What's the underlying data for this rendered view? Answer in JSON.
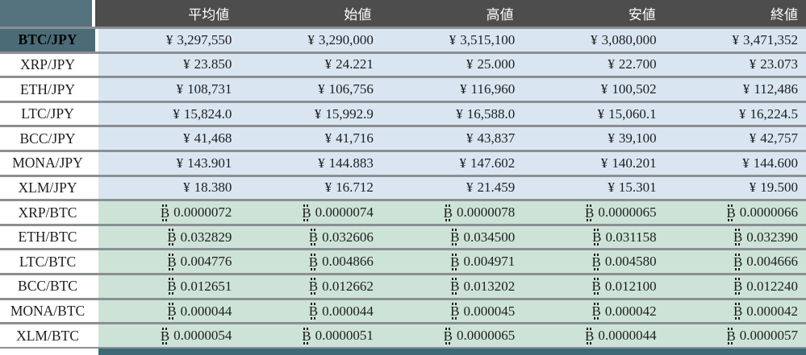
{
  "colors": {
    "header_bg": "#4d4d4d",
    "header_text": "#ffffff",
    "corner_bg": "#54737f",
    "highlight_bg": "#4b6c77",
    "jpy_bg": "#d9e6f2",
    "btc_bg": "#cde3d8",
    "footer_bg": "#3d6a76",
    "border": "#8b8f92",
    "text": "#1e1e1e"
  },
  "chart_data": {
    "type": "table",
    "columns": [
      "平均値",
      "始値",
      "高値",
      "安値",
      "終値"
    ],
    "rows": [
      {
        "pair": "BTC/JPY",
        "quote": "JPY",
        "symbol": "¥",
        "highlighted": true,
        "values": [
          "3,297,550",
          "3,290,000",
          "3,515,100",
          "3,080,000",
          "3,471,352"
        ]
      },
      {
        "pair": "XRP/JPY",
        "quote": "JPY",
        "symbol": "¥",
        "highlighted": false,
        "values": [
          "23.850",
          "24.221",
          "25.000",
          "22.700",
          "23.073"
        ]
      },
      {
        "pair": "ETH/JPY",
        "quote": "JPY",
        "symbol": "¥",
        "highlighted": false,
        "values": [
          "108,731",
          "106,756",
          "116,960",
          "100,502",
          "112,486"
        ]
      },
      {
        "pair": "LTC/JPY",
        "quote": "JPY",
        "symbol": "¥",
        "highlighted": false,
        "values": [
          "15,824.0",
          "15,992.9",
          "16,588.0",
          "15,060.1",
          "16,224.5"
        ]
      },
      {
        "pair": "BCC/JPY",
        "quote": "JPY",
        "symbol": "¥",
        "highlighted": false,
        "values": [
          "41,468",
          "41,716",
          "43,837",
          "39,100",
          "42,757"
        ]
      },
      {
        "pair": "MONA/JPY",
        "quote": "JPY",
        "symbol": "¥",
        "highlighted": false,
        "values": [
          "143.901",
          "144.883",
          "147.602",
          "140.201",
          "144.600"
        ]
      },
      {
        "pair": "XLM/JPY",
        "quote": "JPY",
        "symbol": "¥",
        "highlighted": false,
        "values": [
          "18.380",
          "16.712",
          "21.459",
          "15.301",
          "19.500"
        ]
      },
      {
        "pair": "XRP/BTC",
        "quote": "BTC",
        "symbol": "₿",
        "highlighted": false,
        "values": [
          "0.0000072",
          "0.0000074",
          "0.0000078",
          "0.0000065",
          "0.0000066"
        ]
      },
      {
        "pair": "ETH/BTC",
        "quote": "BTC",
        "symbol": "₿",
        "highlighted": false,
        "values": [
          "0.032829",
          "0.032606",
          "0.034500",
          "0.031158",
          "0.032390"
        ]
      },
      {
        "pair": "LTC/BTC",
        "quote": "BTC",
        "symbol": "₿",
        "highlighted": false,
        "values": [
          "0.004776",
          "0.004866",
          "0.004971",
          "0.004580",
          "0.004666"
        ]
      },
      {
        "pair": "BCC/BTC",
        "quote": "BTC",
        "symbol": "₿",
        "highlighted": false,
        "values": [
          "0.012651",
          "0.012662",
          "0.013202",
          "0.012100",
          "0.012240"
        ]
      },
      {
        "pair": "MONA/BTC",
        "quote": "BTC",
        "symbol": "₿",
        "highlighted": false,
        "values": [
          "0.000044",
          "0.000044",
          "0.000045",
          "0.000042",
          "0.000042"
        ]
      },
      {
        "pair": "XLM/BTC",
        "quote": "BTC",
        "symbol": "₿",
        "highlighted": false,
        "values": [
          "0.0000054",
          "0.0000051",
          "0.0000065",
          "0.0000044",
          "0.0000057"
        ]
      }
    ]
  }
}
